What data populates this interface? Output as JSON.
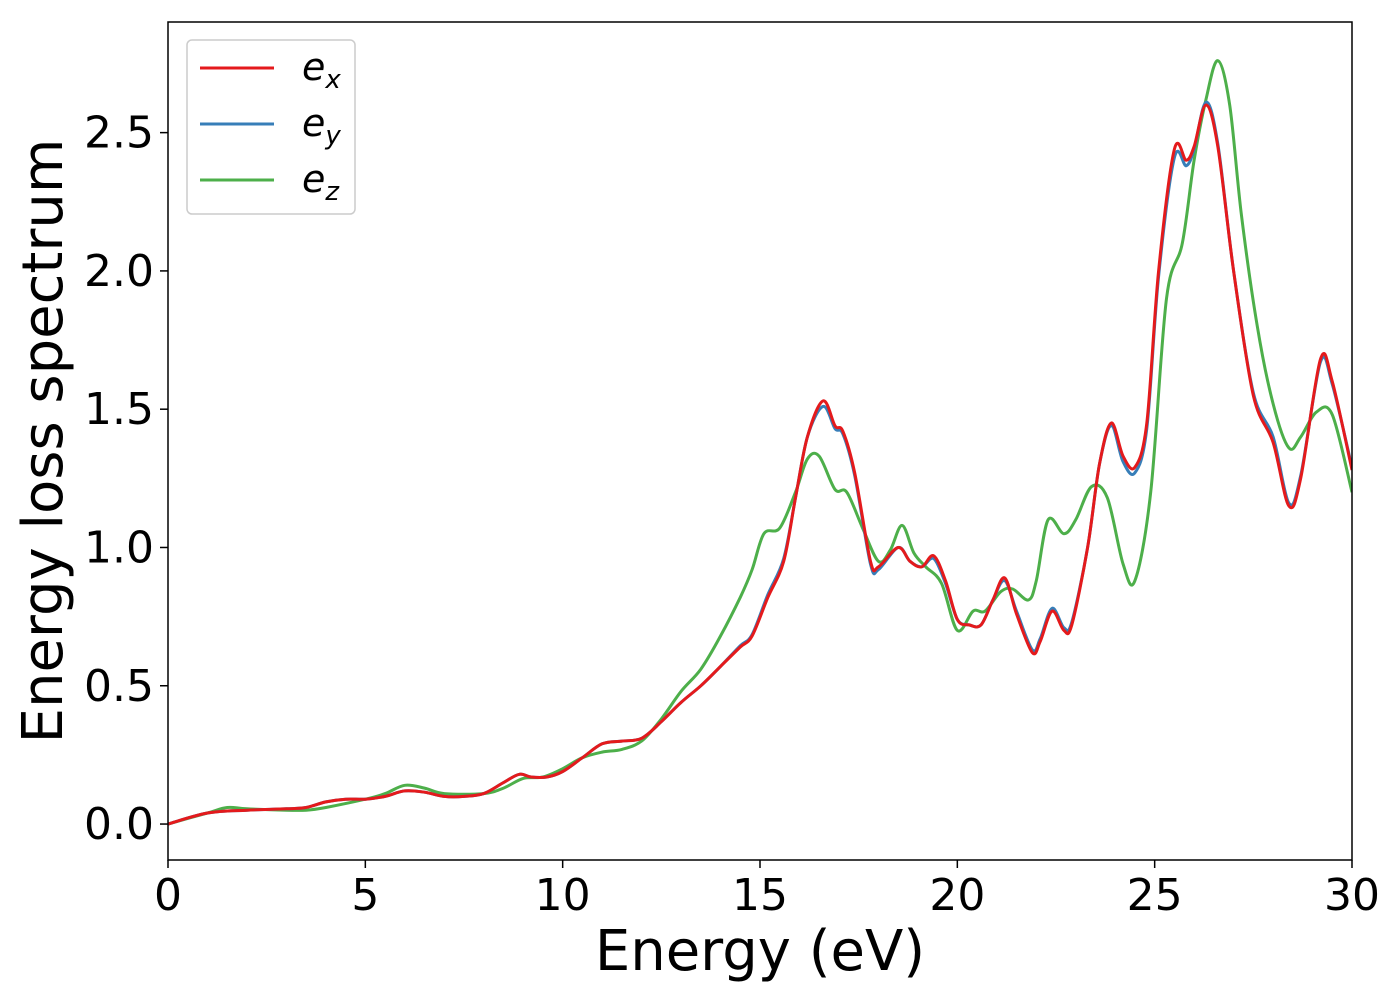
{
  "chart_data": {
    "type": "line",
    "title": "",
    "xlabel": "Energy (eV)",
    "ylabel": "Energy loss spectrum",
    "xlim": [
      0,
      30
    ],
    "ylim": [
      -0.13,
      2.9
    ],
    "xticks": [
      "0",
      "5",
      "10",
      "15",
      "20",
      "25",
      "30"
    ],
    "xtick_values": [
      0,
      5,
      10,
      15,
      20,
      25,
      30
    ],
    "yticks": [
      "0.0",
      "0.5",
      "1.0",
      "1.5",
      "2.0",
      "2.5"
    ],
    "ytick_values": [
      0,
      0.5,
      1.0,
      1.5,
      2.0,
      2.5
    ],
    "grid": false,
    "legend_position": "top-left",
    "series": [
      {
        "name": "e",
        "subscript": "x",
        "color": "#e41a1c",
        "points": [
          [
            0,
            0
          ],
          [
            1,
            0.04
          ],
          [
            2,
            0.05
          ],
          [
            3,
            0.055
          ],
          [
            3.5,
            0.06
          ],
          [
            4,
            0.08
          ],
          [
            4.5,
            0.09
          ],
          [
            5,
            0.09
          ],
          [
            5.5,
            0.1
          ],
          [
            6,
            0.12
          ],
          [
            6.5,
            0.115
          ],
          [
            7,
            0.1
          ],
          [
            7.5,
            0.1
          ],
          [
            8,
            0.11
          ],
          [
            8.5,
            0.15
          ],
          [
            8.9,
            0.18
          ],
          [
            9.2,
            0.17
          ],
          [
            9.6,
            0.17
          ],
          [
            10,
            0.19
          ],
          [
            10.5,
            0.24
          ],
          [
            11,
            0.29
          ],
          [
            11.5,
            0.3
          ],
          [
            12,
            0.31
          ],
          [
            12.5,
            0.37
          ],
          [
            13,
            0.44
          ],
          [
            13.5,
            0.5
          ],
          [
            14,
            0.57
          ],
          [
            14.5,
            0.64
          ],
          [
            14.8,
            0.68
          ],
          [
            15.2,
            0.82
          ],
          [
            15.6,
            0.95
          ],
          [
            15.9,
            1.18
          ],
          [
            16.2,
            1.4
          ],
          [
            16.6,
            1.53
          ],
          [
            16.9,
            1.44
          ],
          [
            17.1,
            1.42
          ],
          [
            17.4,
            1.27
          ],
          [
            17.8,
            0.95
          ],
          [
            18.0,
            0.93
          ],
          [
            18.5,
            1.0
          ],
          [
            18.8,
            0.95
          ],
          [
            19.1,
            0.93
          ],
          [
            19.4,
            0.97
          ],
          [
            19.7,
            0.88
          ],
          [
            20.0,
            0.74
          ],
          [
            20.3,
            0.72
          ],
          [
            20.6,
            0.72
          ],
          [
            20.9,
            0.81
          ],
          [
            21.2,
            0.89
          ],
          [
            21.5,
            0.76
          ],
          [
            21.9,
            0.62
          ],
          [
            22.1,
            0.66
          ],
          [
            22.4,
            0.77
          ],
          [
            22.7,
            0.7
          ],
          [
            22.9,
            0.72
          ],
          [
            23.3,
            1.0
          ],
          [
            23.6,
            1.3
          ],
          [
            23.9,
            1.45
          ],
          [
            24.2,
            1.33
          ],
          [
            24.5,
            1.29
          ],
          [
            24.8,
            1.45
          ],
          [
            25.1,
            2.0
          ],
          [
            25.5,
            2.44
          ],
          [
            25.8,
            2.4
          ],
          [
            26.0,
            2.45
          ],
          [
            26.3,
            2.6
          ],
          [
            26.6,
            2.45
          ],
          [
            27.0,
            2.0
          ],
          [
            27.5,
            1.55
          ],
          [
            28.0,
            1.38
          ],
          [
            28.4,
            1.15
          ],
          [
            28.7,
            1.25
          ],
          [
            29.2,
            1.68
          ],
          [
            29.5,
            1.6
          ],
          [
            30,
            1.28
          ]
        ]
      },
      {
        "name": "e",
        "subscript": "y",
        "color": "#377eb8",
        "points": [
          [
            0,
            0
          ],
          [
            1,
            0.04
          ],
          [
            2,
            0.05
          ],
          [
            3,
            0.055
          ],
          [
            3.5,
            0.06
          ],
          [
            4,
            0.08
          ],
          [
            4.5,
            0.09
          ],
          [
            5,
            0.09
          ],
          [
            5.5,
            0.1
          ],
          [
            6,
            0.12
          ],
          [
            6.5,
            0.115
          ],
          [
            7,
            0.1
          ],
          [
            7.5,
            0.1
          ],
          [
            8,
            0.11
          ],
          [
            8.5,
            0.15
          ],
          [
            8.9,
            0.18
          ],
          [
            9.2,
            0.17
          ],
          [
            9.6,
            0.17
          ],
          [
            10,
            0.19
          ],
          [
            10.5,
            0.24
          ],
          [
            11,
            0.29
          ],
          [
            11.5,
            0.3
          ],
          [
            12,
            0.31
          ],
          [
            12.5,
            0.37
          ],
          [
            13,
            0.44
          ],
          [
            13.5,
            0.5
          ],
          [
            14,
            0.57
          ],
          [
            14.5,
            0.645
          ],
          [
            14.8,
            0.685
          ],
          [
            15.2,
            0.83
          ],
          [
            15.6,
            0.96
          ],
          [
            15.9,
            1.18
          ],
          [
            16.2,
            1.4
          ],
          [
            16.6,
            1.51
          ],
          [
            16.9,
            1.43
          ],
          [
            17.1,
            1.41
          ],
          [
            17.4,
            1.26
          ],
          [
            17.8,
            0.94
          ],
          [
            18.0,
            0.92
          ],
          [
            18.5,
            1.0
          ],
          [
            18.8,
            0.95
          ],
          [
            19.1,
            0.93
          ],
          [
            19.4,
            0.96
          ],
          [
            19.7,
            0.87
          ],
          [
            20.0,
            0.74
          ],
          [
            20.3,
            0.72
          ],
          [
            20.6,
            0.72
          ],
          [
            20.9,
            0.81
          ],
          [
            21.2,
            0.88
          ],
          [
            21.5,
            0.77
          ],
          [
            21.9,
            0.63
          ],
          [
            22.1,
            0.67
          ],
          [
            22.4,
            0.78
          ],
          [
            22.7,
            0.71
          ],
          [
            22.9,
            0.73
          ],
          [
            23.3,
            1.0
          ],
          [
            23.6,
            1.3
          ],
          [
            23.9,
            1.44
          ],
          [
            24.2,
            1.31
          ],
          [
            24.5,
            1.27
          ],
          [
            24.8,
            1.43
          ],
          [
            25.1,
            1.98
          ],
          [
            25.5,
            2.41
          ],
          [
            25.8,
            2.38
          ],
          [
            26.0,
            2.44
          ],
          [
            26.3,
            2.61
          ],
          [
            26.6,
            2.46
          ],
          [
            27.0,
            2.0
          ],
          [
            27.5,
            1.56
          ],
          [
            28.0,
            1.4
          ],
          [
            28.4,
            1.16
          ],
          [
            28.7,
            1.26
          ],
          [
            29.2,
            1.67
          ],
          [
            29.5,
            1.59
          ],
          [
            30,
            1.29
          ]
        ]
      },
      {
        "name": "e",
        "subscript": "z",
        "color": "#4daf4a",
        "points": [
          [
            0,
            0
          ],
          [
            1,
            0.04
          ],
          [
            1.5,
            0.06
          ],
          [
            2,
            0.055
          ],
          [
            3,
            0.05
          ],
          [
            3.5,
            0.05
          ],
          [
            4,
            0.06
          ],
          [
            5,
            0.09
          ],
          [
            5.5,
            0.11
          ],
          [
            6,
            0.14
          ],
          [
            6.5,
            0.13
          ],
          [
            7,
            0.11
          ],
          [
            8,
            0.11
          ],
          [
            8.5,
            0.13
          ],
          [
            9,
            0.165
          ],
          [
            9.5,
            0.17
          ],
          [
            10,
            0.2
          ],
          [
            10.5,
            0.24
          ],
          [
            11,
            0.26
          ],
          [
            11.5,
            0.27
          ],
          [
            12,
            0.3
          ],
          [
            12.5,
            0.38
          ],
          [
            13,
            0.48
          ],
          [
            13.5,
            0.56
          ],
          [
            14,
            0.68
          ],
          [
            14.5,
            0.82
          ],
          [
            14.8,
            0.92
          ],
          [
            15.1,
            1.05
          ],
          [
            15.5,
            1.07
          ],
          [
            15.9,
            1.2
          ],
          [
            16.2,
            1.32
          ],
          [
            16.5,
            1.33
          ],
          [
            16.9,
            1.21
          ],
          [
            17.2,
            1.2
          ],
          [
            17.6,
            1.07
          ],
          [
            18.0,
            0.95
          ],
          [
            18.3,
            0.99
          ],
          [
            18.6,
            1.08
          ],
          [
            18.9,
            0.98
          ],
          [
            19.2,
            0.93
          ],
          [
            19.6,
            0.87
          ],
          [
            20.0,
            0.7
          ],
          [
            20.4,
            0.77
          ],
          [
            20.7,
            0.77
          ],
          [
            21.1,
            0.84
          ],
          [
            21.4,
            0.85
          ],
          [
            21.8,
            0.81
          ],
          [
            22.0,
            0.88
          ],
          [
            22.3,
            1.1
          ],
          [
            22.7,
            1.05
          ],
          [
            23.0,
            1.1
          ],
          [
            23.4,
            1.22
          ],
          [
            23.8,
            1.18
          ],
          [
            24.2,
            0.94
          ],
          [
            24.5,
            0.88
          ],
          [
            24.9,
            1.2
          ],
          [
            25.3,
            1.9
          ],
          [
            25.7,
            2.1
          ],
          [
            26.0,
            2.4
          ],
          [
            26.3,
            2.62
          ],
          [
            26.6,
            2.76
          ],
          [
            26.9,
            2.6
          ],
          [
            27.2,
            2.2
          ],
          [
            27.6,
            1.8
          ],
          [
            28.0,
            1.52
          ],
          [
            28.4,
            1.36
          ],
          [
            28.7,
            1.4
          ],
          [
            29.1,
            1.49
          ],
          [
            29.5,
            1.48
          ],
          [
            30,
            1.2
          ]
        ]
      }
    ]
  }
}
